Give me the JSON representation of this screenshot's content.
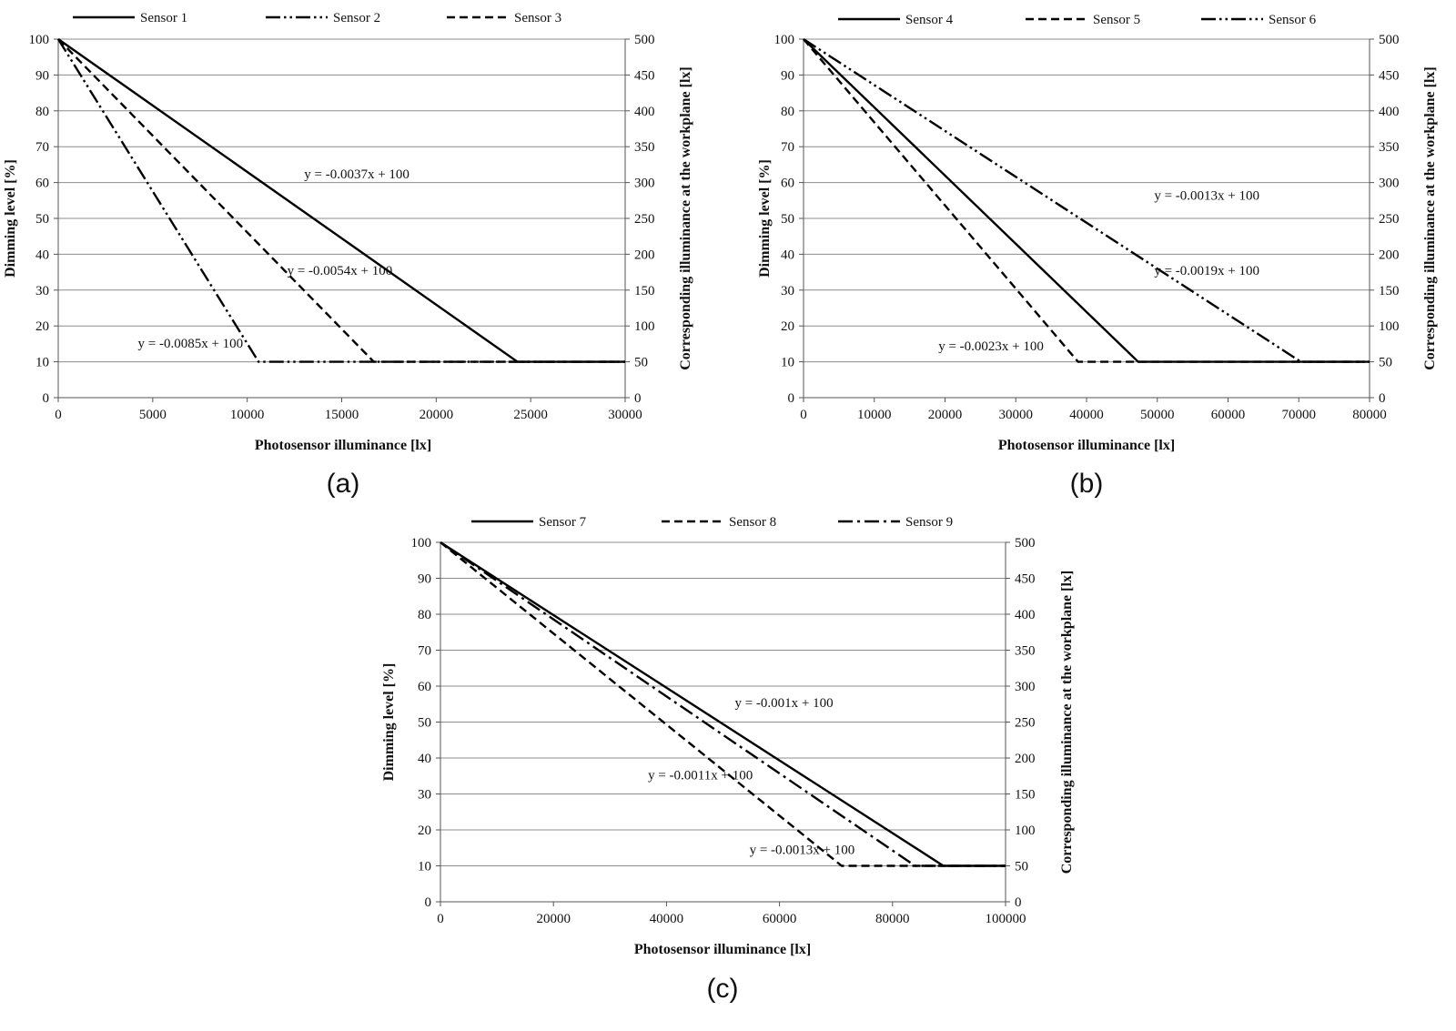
{
  "chart_data": [
    {
      "type": "line",
      "panel_label": "(a)",
      "xlabel": "Photosensor illuminance [lx]",
      "ylabel": "Dimming level [%]",
      "y2label": "Corresponding illuminance at the workplane [lx]",
      "xlim": [
        0,
        30000
      ],
      "ylim": [
        0,
        100
      ],
      "y2lim": [
        0,
        500
      ],
      "xticks": [
        0,
        5000,
        10000,
        15000,
        20000,
        25000,
        30000
      ],
      "yticks": [
        0,
        10,
        20,
        30,
        40,
        50,
        60,
        70,
        80,
        90,
        100
      ],
      "y2ticks": [
        0,
        50,
        100,
        150,
        200,
        250,
        300,
        350,
        400,
        450,
        500
      ],
      "grid": true,
      "legend_position": "top",
      "series": [
        {
          "name": "Sensor 1",
          "dash": "solid",
          "x": [
            0,
            24300,
            30000
          ],
          "y": [
            100,
            10,
            10
          ]
        },
        {
          "name": "Sensor 2",
          "dash": "dashdotdot",
          "x": [
            0,
            10600,
            30000
          ],
          "y": [
            100,
            10,
            10
          ]
        },
        {
          "name": "Sensor 3",
          "dash": "dashed",
          "x": [
            0,
            16700,
            30000
          ],
          "y": [
            100,
            10,
            10
          ]
        }
      ],
      "annotations": [
        {
          "text": "y = -0.0037x + 100",
          "x": 15800,
          "y": 62.5
        },
        {
          "text": "y = -0.0054x + 100",
          "x": 14900,
          "y": 35.5
        },
        {
          "text": "y = -0.0085x + 100",
          "x": 7000,
          "y": 15.2
        }
      ]
    },
    {
      "type": "line",
      "panel_label": "(b)",
      "xlabel": "Photosensor illuminance [lx]",
      "ylabel": "Dimming level [%]",
      "y2label": "Corresponding illuminance at the workplane [lx]",
      "xlim": [
        0,
        80000
      ],
      "ylim": [
        0,
        100
      ],
      "y2lim": [
        0,
        500
      ],
      "xticks": [
        0,
        10000,
        20000,
        30000,
        40000,
        50000,
        60000,
        70000,
        80000
      ],
      "yticks": [
        0,
        10,
        20,
        30,
        40,
        50,
        60,
        70,
        80,
        90,
        100
      ],
      "y2ticks": [
        0,
        50,
        100,
        150,
        200,
        250,
        300,
        350,
        400,
        450,
        500
      ],
      "grid": true,
      "legend_position": "top",
      "series": [
        {
          "name": "Sensor 4",
          "dash": "solid",
          "x": [
            0,
            47300,
            80000
          ],
          "y": [
            100,
            10,
            10
          ]
        },
        {
          "name": "Sensor 5",
          "dash": "dashed",
          "x": [
            0,
            38800,
            80000
          ],
          "y": [
            100,
            10,
            10
          ]
        },
        {
          "name": "Sensor 6",
          "dash": "dashdotdot",
          "x": [
            0,
            70300,
            80000
          ],
          "y": [
            100,
            10,
            10
          ]
        }
      ],
      "annotations": [
        {
          "text": "y = -0.0013x + 100",
          "x": 57000,
          "y": 56.5
        },
        {
          "text": "y = -0.0019x + 100",
          "x": 57000,
          "y": 35.5
        },
        {
          "text": "y = -0.0023x + 100",
          "x": 26500,
          "y": 14.5
        }
      ]
    },
    {
      "type": "line",
      "panel_label": "(c)",
      "xlabel": "Photosensor illuminance [lx]",
      "ylabel": "Dimming level [%]",
      "y2label": "Corresponding illuminance at the workplane [lx]",
      "xlim": [
        0,
        100000
      ],
      "ylim": [
        0,
        100
      ],
      "y2lim": [
        0,
        500
      ],
      "xticks": [
        0,
        20000,
        40000,
        60000,
        80000,
        100000
      ],
      "yticks": [
        0,
        10,
        20,
        30,
        40,
        50,
        60,
        70,
        80,
        90,
        100
      ],
      "y2ticks": [
        0,
        50,
        100,
        150,
        200,
        250,
        300,
        350,
        400,
        450,
        500
      ],
      "grid": true,
      "legend_position": "top",
      "series": [
        {
          "name": "Sensor 7",
          "dash": "solid",
          "x": [
            0,
            89000,
            100000
          ],
          "y": [
            100,
            10,
            10
          ]
        },
        {
          "name": "Sensor 8",
          "dash": "dashed",
          "x": [
            0,
            71000,
            100000
          ],
          "y": [
            100,
            10,
            10
          ]
        },
        {
          "name": "Sensor 9",
          "dash": "dashdot",
          "x": [
            0,
            84000,
            100000
          ],
          "y": [
            100,
            10,
            10
          ]
        }
      ],
      "annotations": [
        {
          "text": "y = -0.001x + 100",
          "x": 60800,
          "y": 55.5
        },
        {
          "text": "y = -0.0011x + 100",
          "x": 46000,
          "y": 35.3
        },
        {
          "text": "y = -0.0013x + 100",
          "x": 64000,
          "y": 14.5
        }
      ]
    }
  ]
}
